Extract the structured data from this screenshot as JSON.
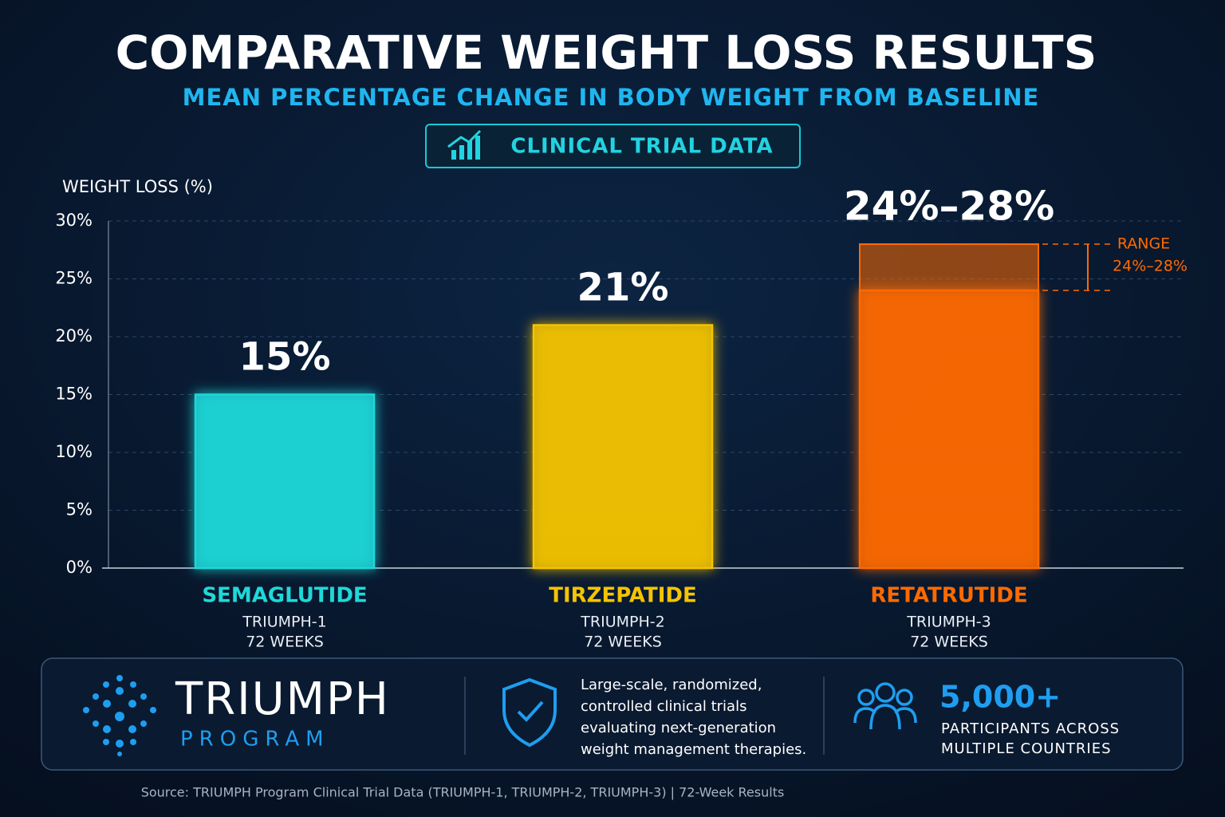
{
  "chart_data": {
    "type": "bar",
    "title": "COMPARATIVE WEIGHT LOSS RESULTS",
    "subtitle": "MEAN PERCENTAGE CHANGE IN BODY WEIGHT FROM BASELINE",
    "badge": "CLINICAL TRIAL DATA",
    "y_label": "WEIGHT LOSS (%)",
    "categories": [
      "SEMAGLUTIDE",
      "TIRZEPATIDE",
      "RETATRUTIDE"
    ],
    "trials": [
      "TRIUMPH-1",
      "TRIUMPH-2",
      "TRIUMPH-3"
    ],
    "durations": [
      "72 WEEKS",
      "72 WEEKS",
      "72 WEEKS"
    ],
    "values": [
      15,
      21,
      24
    ],
    "value_labels": [
      "15%",
      "21%",
      "24%–28%"
    ],
    "range_high": [
      null,
      null,
      28
    ],
    "range_annotation": "RANGE",
    "colors": [
      "#1fd8d8",
      "#f5c400",
      "#ff6a00"
    ],
    "ylim": [
      0,
      30
    ],
    "yticks": [
      {
        "value": 0,
        "label": "0%"
      },
      {
        "value": 5,
        "label": "5%"
      },
      {
        "value": 10,
        "label": "10%"
      },
      {
        "value": 15,
        "label": "15%"
      },
      {
        "value": 20,
        "label": "20%"
      },
      {
        "value": 25,
        "label": "25%"
      },
      {
        "value": 30,
        "label": "30%"
      }
    ],
    "grid": true
  },
  "footer": {
    "brand": "TRIUMPH",
    "brand_sub": "PROGRAM",
    "description": [
      "Large-scale, randomized,",
      "controlled clinical trials",
      "evaluating next-generation",
      "weight management therapies."
    ],
    "stat": "5,000+",
    "stat_lines": [
      "PARTICIPANTS ACROSS",
      "MULTIPLE COUNTRIES"
    ]
  },
  "source": "Source: TRIUMPH Program Clinical Trial Data (TRIUMPH-1, TRIUMPH-2, TRIUMPH-3) | 72-Week Results"
}
